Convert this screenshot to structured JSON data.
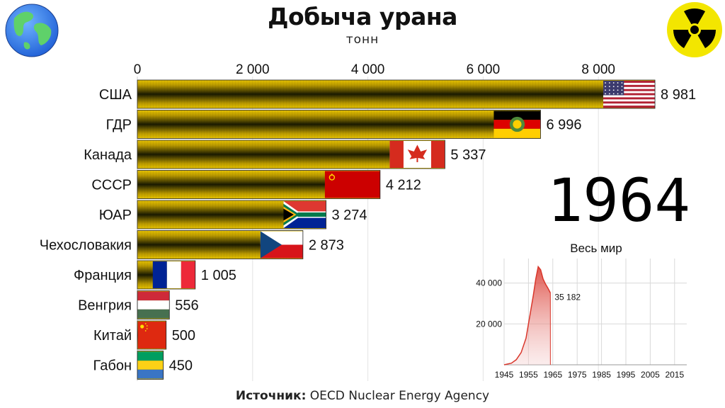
{
  "header": {
    "title": "Добыча урана",
    "subtitle": "тонн"
  },
  "source": {
    "label": "Источник:",
    "text": "OECD Nuclear Energy Agency"
  },
  "icons": {
    "left": "globe-icon",
    "right": "radiation-icon"
  },
  "colors": {
    "bar_dark": "#1a1a00",
    "bar_gold": "#e6c200",
    "inset_line": "#d9362b",
    "inset_fill": "#e8a0a0"
  },
  "chart_data": [
    {
      "type": "bar",
      "orientation": "horizontal",
      "title": "Добыча урана",
      "subtitle": "тонн",
      "year": "1964",
      "categories": [
        "США",
        "ГДР",
        "Канада",
        "СССР",
        "ЮАР",
        "Чехословакия",
        "Франция",
        "Венгрия",
        "Китай",
        "Габон"
      ],
      "values": [
        8981,
        6996,
        5337,
        4212,
        3274,
        2873,
        1005,
        556,
        500,
        450
      ],
      "value_labels": [
        "8 981",
        "6 996",
        "5 337",
        "4 212",
        "3 274",
        "2 873",
        "1 005",
        "556",
        "500",
        "450"
      ],
      "flags": [
        "flag-usa",
        "flag-gdr",
        "flag-canada",
        "flag-ussr",
        "flag-south-africa",
        "flag-czechoslovakia",
        "flag-france",
        "flag-hungary",
        "flag-china",
        "flag-gabon"
      ],
      "xlim": [
        0,
        9000
      ],
      "xticks": [
        0,
        2000,
        4000,
        6000,
        8000
      ],
      "xtick_labels": [
        "0",
        "2 000",
        "4 000",
        "6 000",
        "8 000"
      ],
      "grid": true
    },
    {
      "type": "area",
      "title": "Весь мир",
      "x": [
        1945,
        1948,
        1950,
        1952,
        1954,
        1955,
        1956,
        1957,
        1958,
        1959,
        1960,
        1961,
        1962,
        1963,
        1964
      ],
      "y": [
        0,
        800,
        2500,
        6000,
        13000,
        20000,
        27000,
        34000,
        42000,
        48000,
        46500,
        42000,
        39500,
        37500,
        35182
      ],
      "last_label": "35 182",
      "xticks": [
        1945,
        1955,
        1965,
        1975,
        1985,
        1995,
        2005,
        2015
      ],
      "xtick_labels": [
        "1945",
        "1955",
        "1965",
        "1975",
        "1985",
        "1995",
        "2005",
        "2015"
      ],
      "yticks": [
        20000,
        40000
      ],
      "ytick_labels": [
        "20 000",
        "40 000"
      ],
      "xlim": [
        1945,
        2020
      ],
      "ylim": [
        0,
        52000
      ],
      "grid": true
    }
  ]
}
